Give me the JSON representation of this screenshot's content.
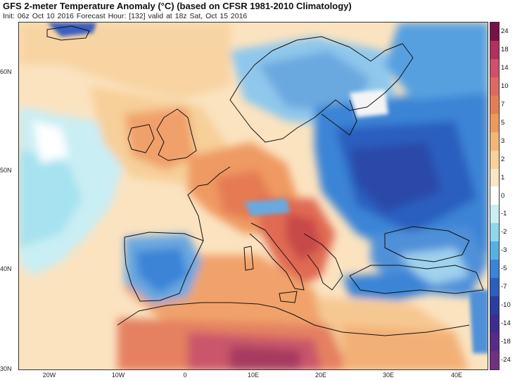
{
  "header": {
    "title": "GFS 2-meter Temperature Anomaly (°C) (based on CFSR 1981-2010 Climatology)",
    "subtitle": "Init: 06z Oct 10 2016   Forecast Hour: [132]   valid at 18z Sat, Oct 15 2016"
  },
  "map": {
    "lat_labels": [
      "60N",
      "50N",
      "40N",
      "30N"
    ],
    "lon_labels": [
      "20W",
      "10W",
      "0",
      "10E",
      "20E",
      "30E",
      "40E"
    ]
  },
  "colorbar": {
    "labels": [
      "24",
      "18",
      "14",
      "10",
      "7",
      "5",
      "3",
      "2",
      "1",
      "0",
      "-1",
      "-2",
      "-3",
      "-5",
      "-7",
      "-10",
      "-14",
      "-18",
      "-24"
    ],
    "colors": [
      "#7a1048",
      "#b0305f",
      "#cf4f6c",
      "#dd6a62",
      "#e57e55",
      "#ec9a5a",
      "#f2b677",
      "#f7d09a",
      "#fbe6c4",
      "#ffffff",
      "#c9eef4",
      "#8fd8ec",
      "#56b1e0",
      "#3b84d6",
      "#2b5fbf",
      "#2a3ea0",
      "#3e2d8f",
      "#5a2b86",
      "#73307f"
    ]
  }
}
